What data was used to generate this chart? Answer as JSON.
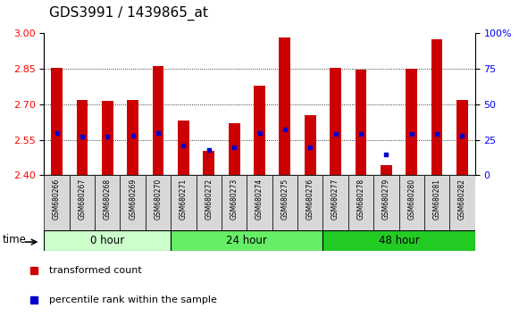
{
  "title": "GDS3991 / 1439865_at",
  "samples": [
    "GSM680266",
    "GSM680267",
    "GSM680268",
    "GSM680269",
    "GSM680270",
    "GSM680271",
    "GSM680272",
    "GSM680273",
    "GSM680274",
    "GSM680275",
    "GSM680276",
    "GSM680277",
    "GSM680278",
    "GSM680279",
    "GSM680280",
    "GSM680281",
    "GSM680282"
  ],
  "transformed_count": [
    2.855,
    2.72,
    2.715,
    2.72,
    2.86,
    2.63,
    2.505,
    2.62,
    2.78,
    2.98,
    2.655,
    2.855,
    2.845,
    2.445,
    2.85,
    2.975,
    2.72
  ],
  "percentile_rank": [
    30,
    27,
    27,
    28,
    30,
    21,
    18,
    20,
    30,
    32,
    20,
    29,
    29,
    15,
    29,
    29,
    28
  ],
  "groups": [
    {
      "label": "0 hour",
      "start": 0,
      "end": 5,
      "color": "#ccffcc"
    },
    {
      "label": "24 hour",
      "start": 5,
      "end": 11,
      "color": "#66ee66"
    },
    {
      "label": "48 hour",
      "start": 11,
      "end": 17,
      "color": "#22cc22"
    }
  ],
  "ylim_left": [
    2.4,
    3.0
  ],
  "ylim_right": [
    0,
    100
  ],
  "yticks_left": [
    2.4,
    2.55,
    2.7,
    2.85,
    3.0
  ],
  "yticks_right": [
    0,
    25,
    50,
    75,
    100
  ],
  "ytick_labels_right": [
    "0",
    "25",
    "50",
    "75",
    "100%"
  ],
  "bar_bottom": 2.4,
  "bar_color": "#cc0000",
  "dot_color": "#0000cc",
  "bg_color": "#ffffff",
  "plot_bg": "#ffffff",
  "title_fontsize": 11,
  "time_label": "time"
}
